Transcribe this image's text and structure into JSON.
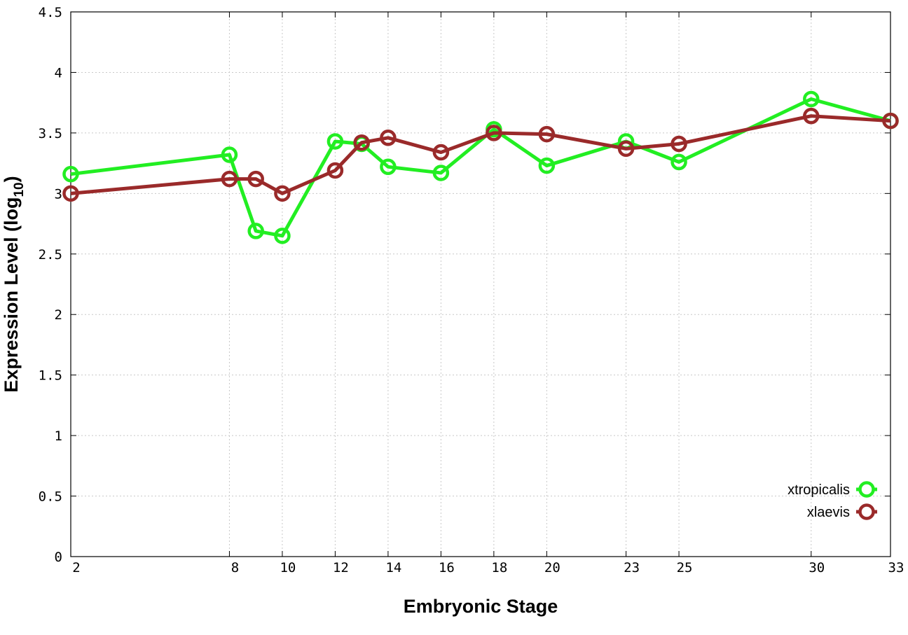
{
  "chart_data": {
    "type": "line",
    "xlabel": "Embryonic Stage",
    "ylabel_main": "Expression Level (log",
    "ylabel_sub": "10",
    "ylabel_close": ")",
    "ylim": [
      0,
      4.5
    ],
    "yticks": [
      0,
      0.5,
      1,
      1.5,
      2,
      2.5,
      3,
      3.5,
      4,
      4.5
    ],
    "ytick_labels": [
      "0",
      "0.5",
      "1",
      "1.5",
      "2",
      "2.5",
      "3",
      "3.5",
      "4",
      "4.5"
    ],
    "x": [
      2,
      8,
      9,
      10,
      12,
      13,
      14,
      16,
      18,
      20,
      23,
      25,
      30,
      33
    ],
    "xticks": [
      2,
      8,
      10,
      12,
      14,
      16,
      18,
      20,
      23,
      25,
      30,
      33
    ],
    "xtick_labels": [
      "2",
      "8",
      "10",
      "12",
      "14",
      "16",
      "18",
      "20",
      "23",
      "25",
      "30",
      "33"
    ],
    "grid": true,
    "legend_position": "bottom-right",
    "series": [
      {
        "name": "xtropicalis",
        "color": "#22ee22",
        "values": [
          3.16,
          3.32,
          2.69,
          2.65,
          3.43,
          3.41,
          3.22,
          3.17,
          3.53,
          3.23,
          3.43,
          3.26,
          3.78,
          3.6
        ]
      },
      {
        "name": "xlaevis",
        "color": "#9a2a2a",
        "values": [
          3.0,
          3.12,
          3.12,
          3.0,
          3.19,
          3.42,
          3.46,
          3.34,
          3.5,
          3.49,
          3.37,
          3.41,
          3.64,
          3.6
        ]
      }
    ]
  }
}
